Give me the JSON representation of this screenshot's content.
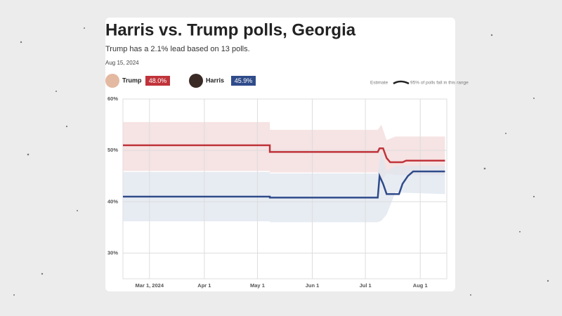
{
  "chart_data": {
    "type": "line",
    "title": "Harris vs. Trump polls, Georgia",
    "subtitle": "Trump has a 2.1% lead based on 13 polls.",
    "date": "Aug 15, 2024",
    "estimate_label": "Estimate",
    "range_label": "95% of polls fall in this range",
    "xlim": [
      "2024-02-15",
      "2024-08-16"
    ],
    "xticks": [
      {
        "value": "2024-03-01",
        "label": "Mar 1, 2024"
      },
      {
        "value": "2024-04-01",
        "label": "Apr 1"
      },
      {
        "value": "2024-05-01",
        "label": "May 1"
      },
      {
        "value": "2024-06-01",
        "label": "Jun 1"
      },
      {
        "value": "2024-07-01",
        "label": "Jul 1"
      },
      {
        "value": "2024-08-01",
        "label": "Aug 1"
      }
    ],
    "ylim": [
      25,
      60
    ],
    "yticks": [
      {
        "value": 30,
        "label": "30%"
      },
      {
        "value": 40,
        "label": "40%"
      },
      {
        "value": 50,
        "label": "50%"
      },
      {
        "value": 60,
        "label": "60%"
      }
    ],
    "grid": true,
    "series": [
      {
        "name": "Trump",
        "color": "#c0333a",
        "band_color": "#f3d9da",
        "current": {
          "value": 48.0,
          "label": "48.0%"
        },
        "x": [
          "2024-02-15",
          "2024-05-08",
          "2024-05-08",
          "2024-07-08",
          "2024-07-09",
          "2024-07-11",
          "2024-07-13",
          "2024-07-15",
          "2024-07-22",
          "2024-07-24",
          "2024-08-15"
        ],
        "values": [
          51,
          51,
          49.7,
          49.7,
          50.4,
          50.4,
          48.5,
          47.7,
          47.7,
          48,
          48
        ],
        "band": {
          "x": [
            "2024-02-15",
            "2024-05-08",
            "2024-05-08",
            "2024-07-08",
            "2024-07-10",
            "2024-07-13",
            "2024-07-18",
            "2024-08-15"
          ],
          "upper": [
            55.5,
            55.5,
            54,
            54,
            55,
            52,
            52.7,
            52.7
          ],
          "lower": [
            46,
            46,
            45.7,
            45.7,
            44,
            45.5,
            45.2,
            45.2
          ]
        }
      },
      {
        "name": "Harris",
        "color": "#2f4b8a",
        "band_color": "#dfe5ef",
        "current": {
          "value": 45.9,
          "label": "45.9%"
        },
        "x": [
          "2024-02-15",
          "2024-05-08",
          "2024-05-08",
          "2024-07-08",
          "2024-07-09",
          "2024-07-11",
          "2024-07-13",
          "2024-07-20",
          "2024-07-22",
          "2024-07-25",
          "2024-07-28",
          "2024-08-15"
        ],
        "values": [
          41,
          41,
          40.8,
          40.8,
          45,
          43.5,
          41.5,
          41.5,
          43.5,
          45,
          45.9,
          45.9
        ],
        "band": {
          "x": [
            "2024-02-15",
            "2024-05-08",
            "2024-05-08",
            "2024-07-08",
            "2024-07-10",
            "2024-07-13",
            "2024-07-18",
            "2024-08-15"
          ],
          "upper": [
            45.8,
            45.8,
            45.5,
            45.5,
            50,
            46,
            47,
            47
          ],
          "lower": [
            36.2,
            36.2,
            36,
            36,
            36.3,
            37.5,
            41.8,
            41.5
          ]
        }
      }
    ]
  }
}
